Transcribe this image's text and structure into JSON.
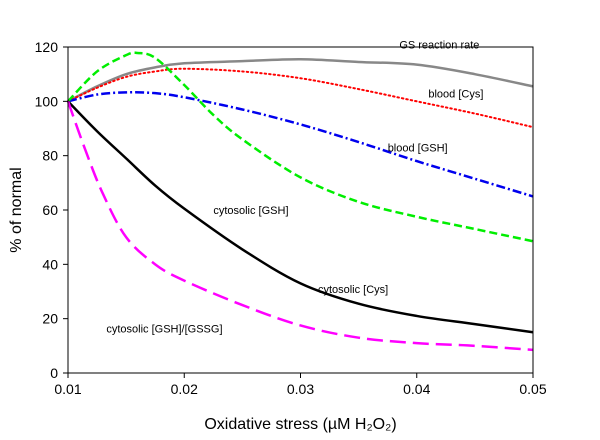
{
  "chart_data": {
    "type": "line",
    "xlabel": "Oxidative stress (µM H₂O₂)",
    "ylabel": "% of normal",
    "xlim": [
      0.01,
      0.05
    ],
    "ylim": [
      0,
      120
    ],
    "xticks": [
      0.01,
      0.02,
      0.03,
      0.04,
      0.05
    ],
    "xtick_labels": [
      "0.01",
      "0.02",
      "0.03",
      "0.04",
      "0.05"
    ],
    "yticks": [
      0,
      20,
      40,
      60,
      80,
      100,
      120
    ],
    "ytick_labels": [
      "0",
      "20",
      "40",
      "60",
      "80",
      "100",
      "120"
    ],
    "grid": false,
    "legend": "none",
    "series": [
      {
        "name": "GS reaction rate",
        "color": "#888888",
        "style": "solid",
        "x": [
          0.01,
          0.0125,
          0.015,
          0.0175,
          0.02,
          0.025,
          0.03,
          0.035,
          0.04,
          0.045,
          0.05
        ],
        "y": [
          100,
          105.5,
          110,
          112.5,
          114,
          114.8,
          115.5,
          114.5,
          113.5,
          110,
          105.5
        ]
      },
      {
        "name": "blood [Cys]",
        "color": "#ff0000",
        "style": "dotted",
        "x": [
          0.01,
          0.0125,
          0.015,
          0.0175,
          0.02,
          0.025,
          0.03,
          0.035,
          0.04,
          0.045,
          0.05
        ],
        "y": [
          100,
          105,
          109,
          111,
          112,
          111,
          108.5,
          104.5,
          100,
          95.5,
          90.5
        ]
      },
      {
        "name": "blood [GSH]",
        "color": "#0000ee",
        "style": "dashdot",
        "x": [
          0.01,
          0.0125,
          0.015,
          0.0175,
          0.02,
          0.025,
          0.03,
          0.035,
          0.04,
          0.045,
          0.05
        ],
        "y": [
          100,
          102.5,
          103.3,
          103,
          101.5,
          97,
          91.5,
          85,
          78,
          71.5,
          65
        ]
      },
      {
        "name": "cytosolic [GSH]",
        "color": "#00ee00",
        "style": "dashed",
        "x": [
          0.01,
          0.0125,
          0.015,
          0.016,
          0.0175,
          0.02,
          0.0225,
          0.025,
          0.03,
          0.035,
          0.04,
          0.045,
          0.05
        ],
        "y": [
          100,
          111,
          117,
          117.8,
          116,
          106,
          95,
          86,
          72,
          63,
          57.5,
          53,
          48.5
        ]
      },
      {
        "name": "cytosolic [Cys]",
        "color": "#000000",
        "style": "solid",
        "x": [
          0.01,
          0.0125,
          0.015,
          0.0175,
          0.02,
          0.025,
          0.03,
          0.035,
          0.04,
          0.045,
          0.05
        ],
        "y": [
          100,
          89,
          79,
          69,
          60.5,
          45.5,
          33,
          25.5,
          21,
          18,
          15
        ]
      },
      {
        "name": "cytosolic [GSH]/[GSSG]",
        "color": "#ff00ff",
        "style": "longdash",
        "x": [
          0.01,
          0.0115,
          0.013,
          0.015,
          0.0175,
          0.02,
          0.025,
          0.03,
          0.035,
          0.04,
          0.045,
          0.05
        ],
        "y": [
          100,
          82,
          66,
          50,
          40,
          34,
          25,
          17.5,
          13,
          11,
          10,
          8.5
        ]
      }
    ],
    "annotations": [
      {
        "text": "GS reaction rate",
        "x": 0.0385,
        "y": 119.5
      },
      {
        "text": "blood [Cys]",
        "x": 0.041,
        "y": 101.5
      },
      {
        "text": "blood [GSH]",
        "x": 0.0375,
        "y": 81.5
      },
      {
        "text": "cytosolic [GSH]",
        "x": 0.0225,
        "y": 58.5
      },
      {
        "text": "cytosolic [Cys]",
        "x": 0.0315,
        "y": 29.5
      },
      {
        "text": "cytosolic [GSH]/[GSSG]",
        "x": 0.0133,
        "y": 15
      }
    ]
  }
}
